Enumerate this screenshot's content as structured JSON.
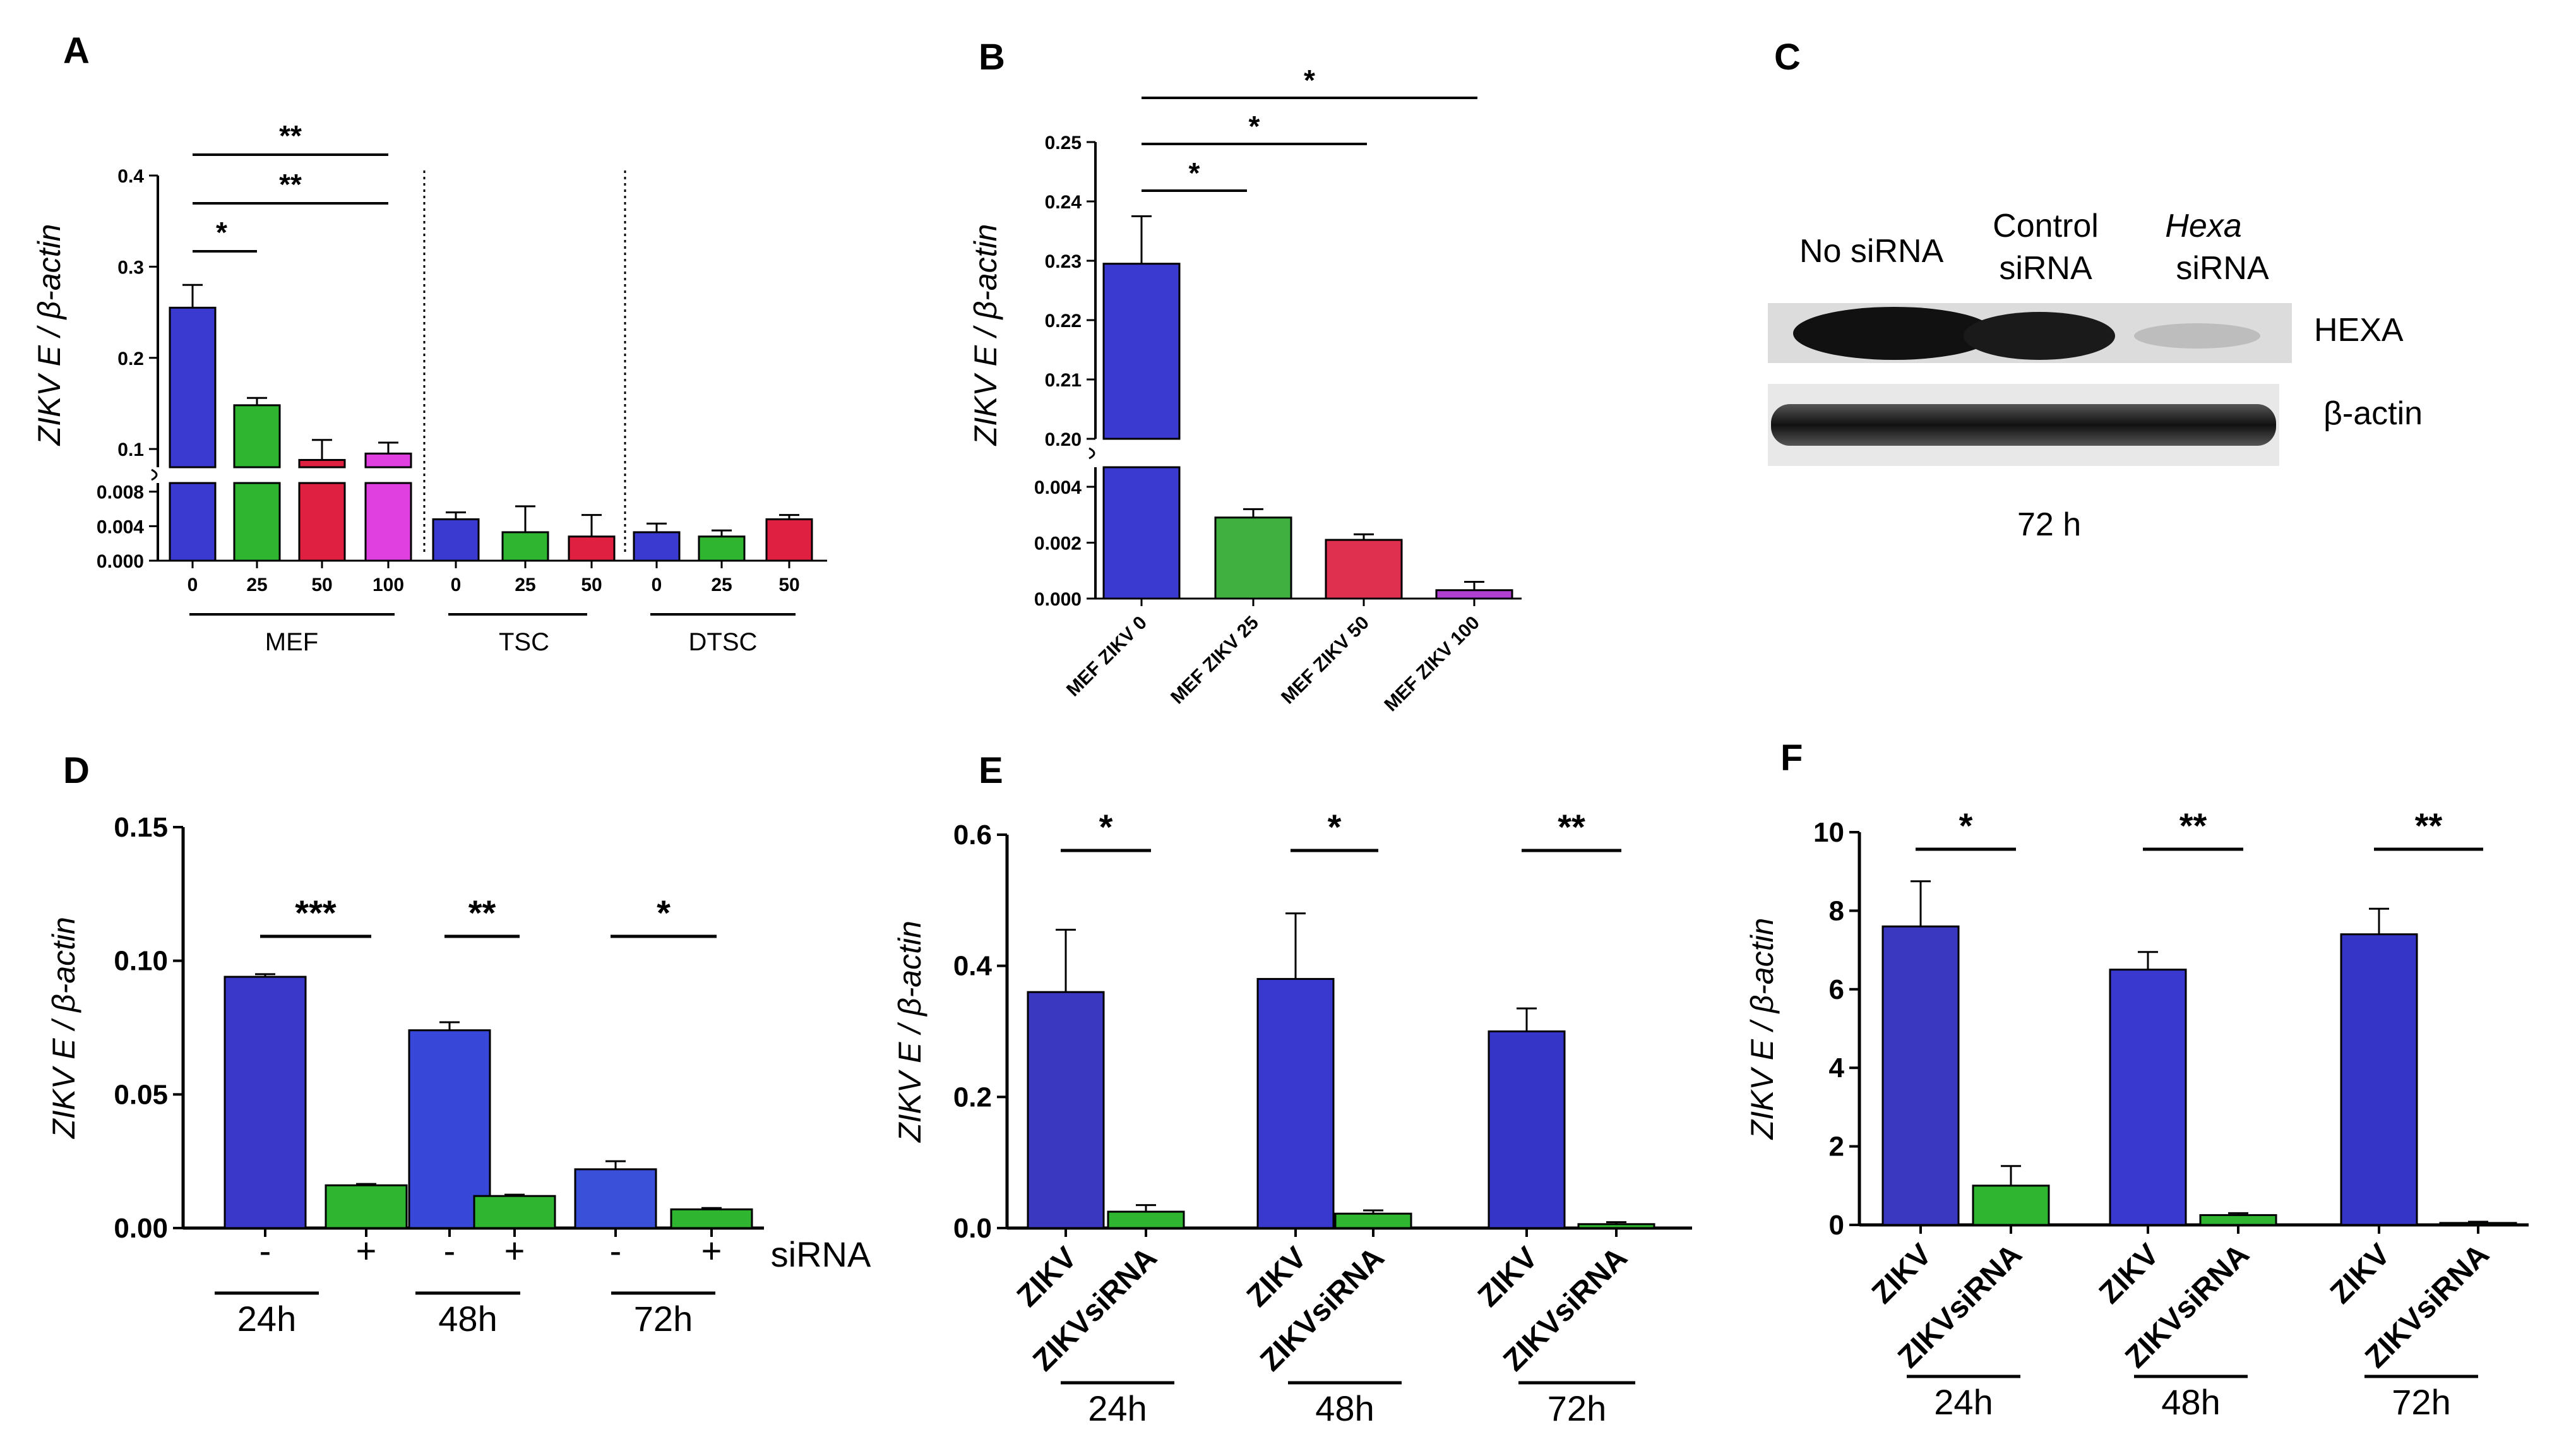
{
  "colors": {
    "blue": "#3a3ad0",
    "green": "#2fb52f",
    "red": "#e02040",
    "magenta": "#e040e0",
    "green_b": "#40b040",
    "red_b": "#e03050",
    "purple": "#b040d0"
  },
  "panels": {
    "A": {
      "label": "A"
    },
    "B": {
      "label": "B"
    },
    "C": {
      "label": "C"
    },
    "D": {
      "label": "D"
    },
    "E": {
      "label": "E"
    },
    "F": {
      "label": "F"
    }
  },
  "blot": {
    "lanes": [
      "No siRNA",
      "Control siRNA",
      "Hexa siRNA"
    ],
    "lane1": "No siRNA",
    "lane2_line1": "Control",
    "lane2_line2": "siRNA",
    "lane3_line1": "Hexa",
    "lane3_line2": "siRNA",
    "bands": [
      "HEXA",
      "β-actin"
    ],
    "time": "72 h"
  },
  "chart_data": [
    {
      "panel": "A",
      "type": "bar",
      "ylabel": "ZIKV E / β-actin",
      "broken_axis": true,
      "upper_ticks": [
        "0.1",
        "0.2",
        "0.3",
        "0.4"
      ],
      "lower_ticks": [
        "0.000",
        "0.004",
        "0.008"
      ],
      "groups": [
        "MEF",
        "TSC",
        "DTSC"
      ],
      "categories": [
        "0",
        "25",
        "50",
        "100",
        "0",
        "25",
        "50",
        "0",
        "25",
        "50"
      ],
      "values": [
        0.255,
        0.148,
        0.088,
        0.095,
        0.0048,
        0.0033,
        0.0028,
        0.0033,
        0.0028,
        0.0048
      ],
      "errors": [
        0.025,
        0.008,
        0.022,
        0.012,
        0.0008,
        0.003,
        0.0025,
        0.001,
        0.0007,
        0.0005
      ],
      "significance": [
        {
          "label": "*",
          "from": "0",
          "to": "25"
        },
        {
          "label": "**",
          "from": "0",
          "to": "50"
        },
        {
          "label": "**",
          "from": "0",
          "to": "100"
        }
      ]
    },
    {
      "panel": "B",
      "type": "bar",
      "ylabel": "ZIKV E / β-actin",
      "broken_axis": true,
      "upper_ticks": [
        "0.20",
        "0.21",
        "0.22",
        "0.23",
        "0.24",
        "0.25"
      ],
      "lower_ticks": [
        "0.000",
        "0.002",
        "0.004"
      ],
      "categories": [
        "MEF ZIKV 0",
        "MEF ZIKV 25",
        "MEF ZIKV 50",
        "MEF ZIKV 100"
      ],
      "values": [
        0.2295,
        0.0029,
        0.0021,
        0.0003
      ],
      "errors": [
        0.008,
        0.0003,
        0.0002,
        0.0003
      ],
      "significance": [
        {
          "label": "*",
          "from": "MEF ZIKV 0",
          "to": "MEF ZIKV 25"
        },
        {
          "label": "*",
          "from": "MEF ZIKV 0",
          "to": "MEF ZIKV 50"
        },
        {
          "label": "*",
          "from": "MEF ZIKV 0",
          "to": "MEF ZIKV 100"
        }
      ]
    },
    {
      "panel": "D",
      "type": "bar",
      "ylabel": "ZIKV E / β-actin",
      "ylim": [
        0,
        0.15
      ],
      "yticks": [
        "0.00",
        "0.05",
        "0.10",
        "0.15"
      ],
      "groups": [
        "24h",
        "48h",
        "72h"
      ],
      "categories": [
        "-",
        "+",
        "-",
        "+",
        "-",
        "+"
      ],
      "siRNA_label": "siRNA",
      "values": [
        0.094,
        0.016,
        0.074,
        0.012,
        0.022,
        0.007
      ],
      "errors": [
        0.001,
        0.0005,
        0.003,
        0.0005,
        0.003,
        0.0005
      ],
      "significance": [
        "***",
        "**",
        "*"
      ]
    },
    {
      "panel": "E",
      "type": "bar",
      "ylabel": "ZIKV E / β-actin",
      "ylim": [
        0,
        0.6
      ],
      "yticks": [
        "0.0",
        "0.2",
        "0.4",
        "0.6"
      ],
      "groups": [
        "24h",
        "48h",
        "72h"
      ],
      "categories": [
        "ZIKV",
        "ZIKVsiRNA",
        "ZIKV",
        "ZIKVsiRNA",
        "ZIKV",
        "ZIKVsiRNA"
      ],
      "values": [
        0.36,
        0.025,
        0.38,
        0.022,
        0.3,
        0.006
      ],
      "errors": [
        0.095,
        0.01,
        0.1,
        0.005,
        0.035,
        0.003
      ],
      "significance": [
        "*",
        "*",
        "**"
      ]
    },
    {
      "panel": "F",
      "type": "bar",
      "ylabel": "ZIKV E / β-actin",
      "ylim": [
        0,
        10
      ],
      "yticks": [
        "0",
        "2",
        "4",
        "6",
        "8",
        "10"
      ],
      "groups": [
        "24h",
        "48h",
        "72h"
      ],
      "categories": [
        "ZIKV",
        "ZIKVsiRNA",
        "ZIKV",
        "ZIKVsiRNA",
        "ZIKV",
        "ZIKVsiRNA"
      ],
      "values": [
        7.6,
        1.0,
        6.5,
        0.25,
        7.4,
        0.05
      ],
      "errors": [
        1.15,
        0.5,
        0.45,
        0.05,
        0.65,
        0.03
      ],
      "significance": [
        "*",
        "**",
        "**"
      ]
    }
  ]
}
